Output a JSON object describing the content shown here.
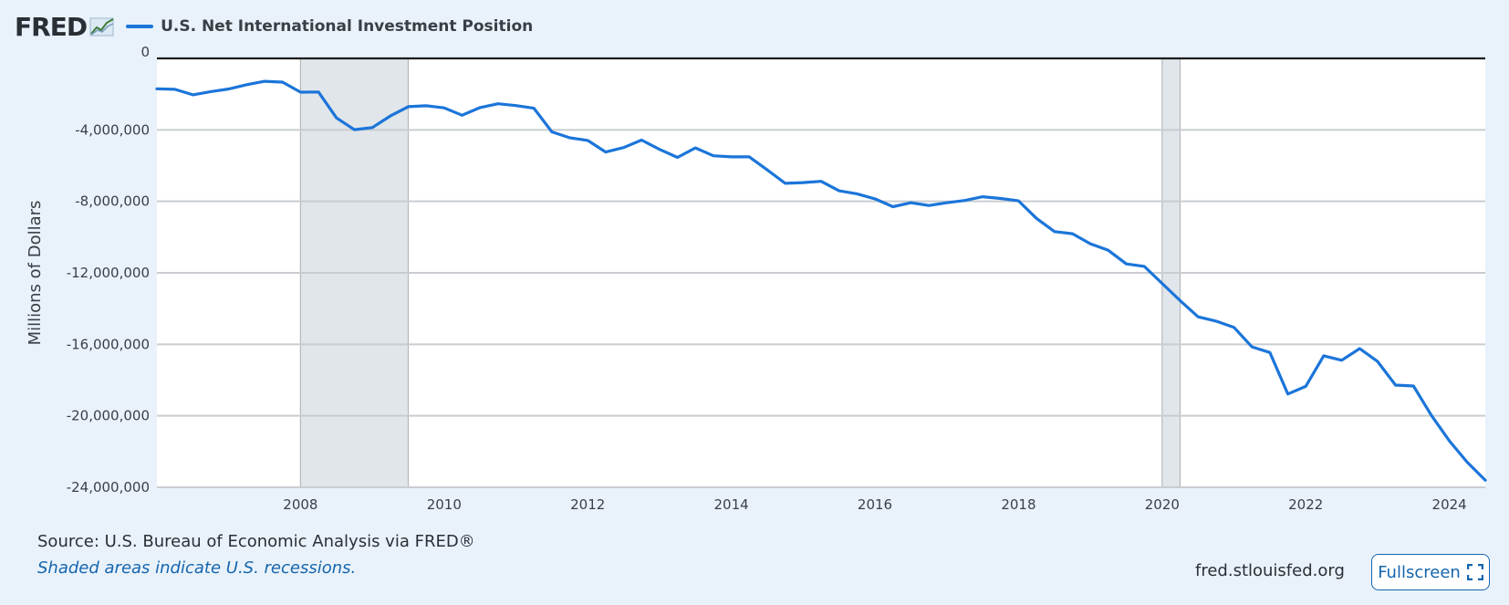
{
  "header": {
    "logo_text": "FRED",
    "legend_label": "U.S. Net International Investment Position",
    "series_color": "#1b75d9"
  },
  "footer": {
    "source": "Source: U.S. Bureau of Economic Analysis via FRED®",
    "recession_note": "Shaded areas indicate U.S. recessions.",
    "site_url": "fred.stlouisfed.org",
    "fullscreen_label": "Fullscreen",
    "fullscreen_icon": "expand-corners-icon"
  },
  "chart_data": {
    "type": "line",
    "title": "",
    "xlabel": "",
    "ylabel": "Millions of Dollars",
    "xlim": [
      2006.0,
      2024.5
    ],
    "ylim": [
      -24000000,
      0
    ],
    "grid": true,
    "x_ticks": [
      2008,
      2010,
      2012,
      2014,
      2016,
      2018,
      2020,
      2022,
      2024
    ],
    "y_ticks": [
      0,
      -4000000,
      -8000000,
      -12000000,
      -16000000,
      -20000000,
      -24000000
    ],
    "y_tick_labels": [
      "0",
      "-4,000,000",
      "-8,000,000",
      "-12,000,000",
      "-16,000,000",
      "-20,000,000",
      "-24,000,000"
    ],
    "recessions": [
      [
        2008.0,
        2009.5
      ],
      [
        2020.0,
        2020.25
      ]
    ],
    "series": [
      {
        "name": "U.S. Net International Investment Position",
        "color": "#1b75d9",
        "x": [
          2006.0,
          2006.25,
          2006.5,
          2006.75,
          2007.0,
          2007.25,
          2007.5,
          2007.75,
          2008.0,
          2008.25,
          2008.5,
          2008.75,
          2009.0,
          2009.25,
          2009.5,
          2009.75,
          2010.0,
          2010.25,
          2010.5,
          2010.75,
          2011.0,
          2011.25,
          2011.5,
          2011.75,
          2012.0,
          2012.25,
          2012.5,
          2012.75,
          2013.0,
          2013.25,
          2013.5,
          2013.75,
          2014.0,
          2014.25,
          2014.5,
          2014.75,
          2015.0,
          2015.25,
          2015.5,
          2015.75,
          2016.0,
          2016.25,
          2016.5,
          2016.75,
          2017.0,
          2017.25,
          2017.5,
          2017.75,
          2018.0,
          2018.25,
          2018.5,
          2018.75,
          2019.0,
          2019.25,
          2019.5,
          2019.75,
          2020.0,
          2020.25,
          2020.5,
          2020.75,
          2021.0,
          2021.25,
          2021.5,
          2021.75,
          2022.0,
          2022.25,
          2022.5,
          2022.75,
          2023.0,
          2023.25,
          2023.5,
          2023.75,
          2024.0,
          2024.25,
          2024.5
        ],
        "values": [
          -1700000,
          -1730000,
          -2040000,
          -1860000,
          -1710000,
          -1470000,
          -1280000,
          -1330000,
          -1890000,
          -1880000,
          -3330000,
          -3990000,
          -3870000,
          -3220000,
          -2700000,
          -2650000,
          -2770000,
          -3180000,
          -2750000,
          -2540000,
          -2640000,
          -2790000,
          -4110000,
          -4440000,
          -4590000,
          -5240000,
          -4990000,
          -4570000,
          -5090000,
          -5540000,
          -5010000,
          -5450000,
          -5510000,
          -5510000,
          -6240000,
          -6990000,
          -6950000,
          -6880000,
          -7410000,
          -7580000,
          -7860000,
          -8300000,
          -8080000,
          -8230000,
          -8080000,
          -7950000,
          -7740000,
          -7840000,
          -7970000,
          -8950000,
          -9690000,
          -9810000,
          -10370000,
          -10740000,
          -11500000,
          -11640000,
          -12590000,
          -13550000,
          -14460000,
          -14700000,
          -15050000,
          -16140000,
          -16460000,
          -18780000,
          -18350000,
          -16640000,
          -16890000,
          -16240000,
          -16960000,
          -18280000,
          -18330000,
          -19980000,
          -21400000,
          -22600000,
          -23600000
        ]
      }
    ]
  }
}
